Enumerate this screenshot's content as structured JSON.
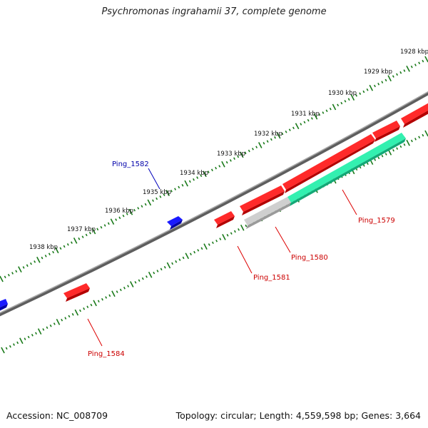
{
  "title": "Psychromonas ingrahamii 37, complete genome",
  "footer": {
    "accession": "Accession: NC_008709",
    "summary": "Topology: circular; Length: 4,559,598 bp; Genes: 3,664"
  },
  "colors": {
    "backbone": "#7a7a7a",
    "forward_gene": "#ee0000",
    "reverse_gene": "#0000dd",
    "highlight_gene": "#22e0a0",
    "rna_or_pseudo": "#bdbdbd",
    "ticks": "#1a7a1a",
    "forward_label": "#cc0000",
    "reverse_label": "#0000aa"
  },
  "scale_labels": [
    "1928 kbp",
    "1929 kbp",
    "1930 kbp",
    "1931 kbp",
    "1932 kbp",
    "1933 kbp",
    "1934 kbp",
    "1935 kbp",
    "1936 kbp",
    "1937 kbp",
    "1938 kbp"
  ],
  "gene_labels": [
    {
      "id": "Ping_1579",
      "strand": "forward"
    },
    {
      "id": "Ping_1580",
      "strand": "forward"
    },
    {
      "id": "Ping_1581",
      "strand": "forward"
    },
    {
      "id": "Ping_1582",
      "strand": "reverse"
    },
    {
      "id": "Ping_1584",
      "strand": "forward"
    }
  ]
}
